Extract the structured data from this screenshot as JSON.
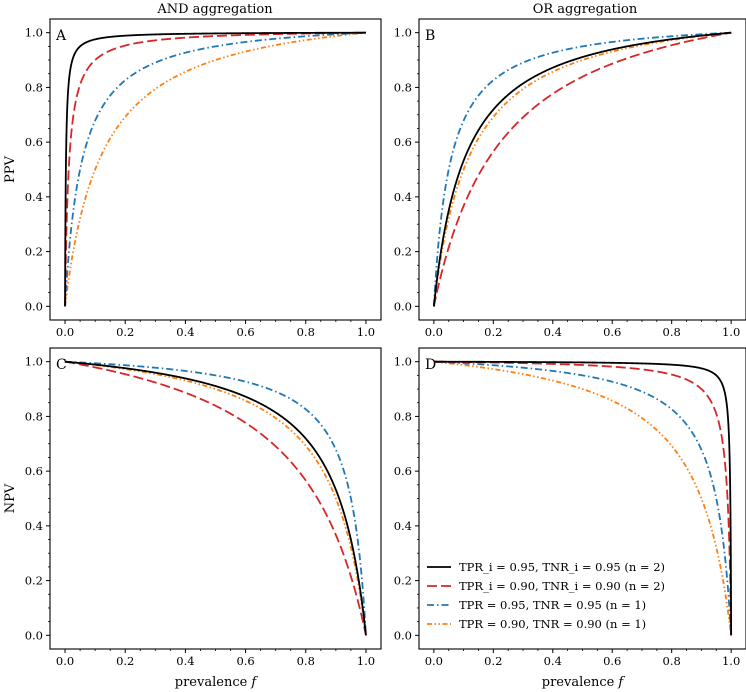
{
  "figure": {
    "col_titles": [
      "AND aggregation",
      "OR aggregation"
    ]
  },
  "chart_data": [
    {
      "type": "line",
      "panel": "A",
      "title": "AND aggregation",
      "xlabel": "",
      "ylabel": "PPV",
      "xlim": [
        0,
        1
      ],
      "ylim": [
        0,
        1
      ],
      "xticks": [
        "0.0",
        "0.2",
        "0.4",
        "0.6",
        "0.8",
        "1.0"
      ],
      "yticks": [
        "0.0",
        "0.2",
        "0.4",
        "0.6",
        "0.8",
        "1.0"
      ],
      "metric": "ppv",
      "aggregation": "and",
      "series": [
        {
          "name": "TPR_i = 0.95, TNR_i = 0.95 (n = 2)",
          "tpr": 0.95,
          "tnr": 0.95,
          "n": 2,
          "color": "#000000"
        },
        {
          "name": "TPR_i = 0.90, TNR_i = 0.90 (n = 2)",
          "tpr": 0.9,
          "tnr": 0.9,
          "n": 2,
          "color": "#d62728"
        },
        {
          "name": "TPR = 0.95, TNR = 0.95 (n = 1)",
          "tpr": 0.95,
          "tnr": 0.95,
          "n": 1,
          "color": "#1f77b4"
        },
        {
          "name": "TPR = 0.90, TNR = 0.90 (n = 1)",
          "tpr": 0.9,
          "tnr": 0.9,
          "n": 1,
          "color": "#ff7f0e"
        }
      ]
    },
    {
      "type": "line",
      "panel": "B",
      "title": "OR aggregation",
      "xlabel": "",
      "ylabel": "",
      "xlim": [
        0,
        1
      ],
      "ylim": [
        0,
        1
      ],
      "xticks": [
        "0.0",
        "0.2",
        "0.4",
        "0.6",
        "0.8",
        "1.0"
      ],
      "yticks": [
        "0.0",
        "0.2",
        "0.4",
        "0.6",
        "0.8",
        "1.0"
      ],
      "metric": "ppv",
      "aggregation": "or",
      "series": [
        {
          "name": "TPR_i = 0.95, TNR_i = 0.95 (n = 2)",
          "tpr": 0.95,
          "tnr": 0.95,
          "n": 2,
          "color": "#000000"
        },
        {
          "name": "TPR_i = 0.90, TNR_i = 0.90 (n = 2)",
          "tpr": 0.9,
          "tnr": 0.9,
          "n": 2,
          "color": "#d62728"
        },
        {
          "name": "TPR = 0.95, TNR = 0.95 (n = 1)",
          "tpr": 0.95,
          "tnr": 0.95,
          "n": 1,
          "color": "#1f77b4"
        },
        {
          "name": "TPR = 0.90, TNR = 0.90 (n = 1)",
          "tpr": 0.9,
          "tnr": 0.9,
          "n": 1,
          "color": "#ff7f0e"
        }
      ]
    },
    {
      "type": "line",
      "panel": "C",
      "title": "",
      "xlabel": "prevalence f",
      "ylabel": "NPV",
      "xlim": [
        0,
        1
      ],
      "ylim": [
        0,
        1
      ],
      "xticks": [
        "0.0",
        "0.2",
        "0.4",
        "0.6",
        "0.8",
        "1.0"
      ],
      "yticks": [
        "0.0",
        "0.2",
        "0.4",
        "0.6",
        "0.8",
        "1.0"
      ],
      "metric": "npv",
      "aggregation": "and",
      "series": [
        {
          "name": "TPR_i = 0.95, TNR_i = 0.95 (n = 2)",
          "tpr": 0.95,
          "tnr": 0.95,
          "n": 2,
          "color": "#000000"
        },
        {
          "name": "TPR_i = 0.90, TNR_i = 0.90 (n = 2)",
          "tpr": 0.9,
          "tnr": 0.9,
          "n": 2,
          "color": "#d62728"
        },
        {
          "name": "TPR = 0.95, TNR = 0.95 (n = 1)",
          "tpr": 0.95,
          "tnr": 0.95,
          "n": 1,
          "color": "#1f77b4"
        },
        {
          "name": "TPR = 0.90, TNR = 0.90 (n = 1)",
          "tpr": 0.9,
          "tnr": 0.9,
          "n": 1,
          "color": "#ff7f0e"
        }
      ]
    },
    {
      "type": "line",
      "panel": "D",
      "title": "",
      "xlabel": "prevalence f",
      "ylabel": "",
      "xlim": [
        0,
        1
      ],
      "ylim": [
        0,
        1
      ],
      "xticks": [
        "0.0",
        "0.2",
        "0.4",
        "0.6",
        "0.8",
        "1.0"
      ],
      "yticks": [
        "0.0",
        "0.2",
        "0.4",
        "0.6",
        "0.8",
        "1.0"
      ],
      "metric": "npv",
      "aggregation": "or",
      "legend": {
        "placement": "lower-left",
        "entries": [
          {
            "label": "TPR_i = 0.95, TNR_i = 0.95 (n = 2)",
            "color": "#000000",
            "style": "solid"
          },
          {
            "label": "TPR_i = 0.90, TNR_i = 0.90 (n = 2)",
            "color": "#d62728",
            "style": "dashed"
          },
          {
            "label": "TPR = 0.95, TNR = 0.95 (n = 1)",
            "color": "#1f77b4",
            "style": "dashdot"
          },
          {
            "label": "TPR = 0.90, TNR = 0.90 (n = 1)",
            "color": "#ff7f0e",
            "style": "dashdotdot"
          }
        ]
      },
      "series": [
        {
          "name": "TPR_i = 0.95, TNR_i = 0.95 (n = 2)",
          "tpr": 0.95,
          "tnr": 0.95,
          "n": 2,
          "color": "#000000"
        },
        {
          "name": "TPR_i = 0.90, TNR_i = 0.90 (n = 2)",
          "tpr": 0.9,
          "tnr": 0.9,
          "n": 2,
          "color": "#d62728"
        },
        {
          "name": "TPR = 0.95, TNR = 0.95 (n = 1)",
          "tpr": 0.95,
          "tnr": 0.95,
          "n": 1,
          "color": "#1f77b4"
        },
        {
          "name": "TPR = 0.90, TNR = 0.90 (n = 1)",
          "tpr": 0.9,
          "tnr": 0.9,
          "n": 1,
          "color": "#ff7f0e"
        }
      ]
    }
  ]
}
